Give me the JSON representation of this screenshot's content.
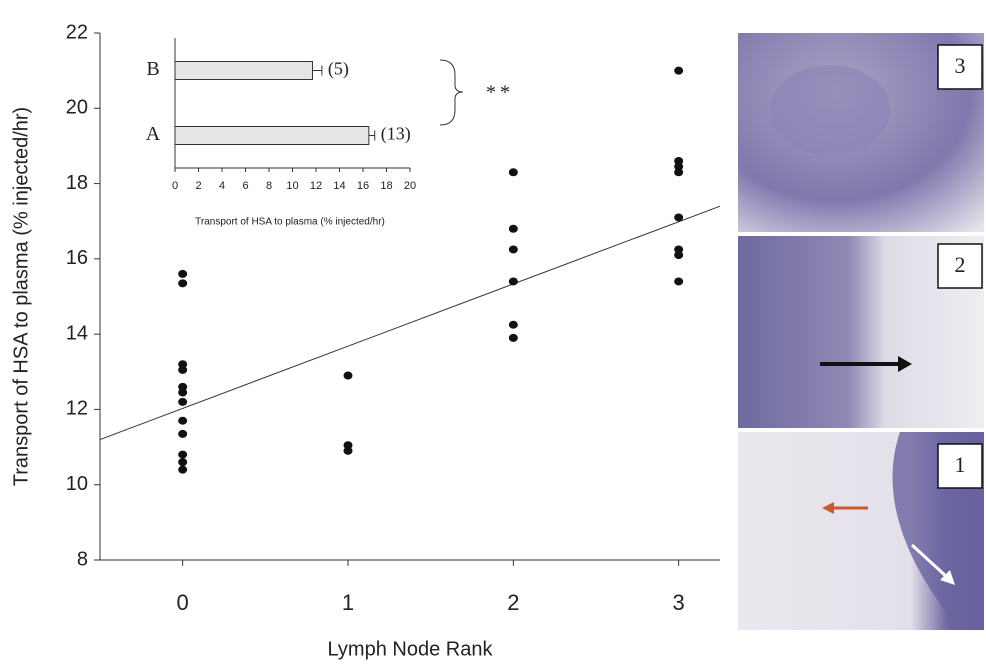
{
  "chart_data": [
    {
      "type": "scatter",
      "xlabel": "Lymph Node Rank",
      "ylabel": "Transport of HSA to plasma (% injected/hr)",
      "x": [
        0,
        0,
        0,
        0,
        0,
        0,
        0,
        0,
        0,
        0,
        0,
        0,
        1,
        1,
        1,
        2,
        2,
        2,
        2,
        2,
        2,
        3,
        3,
        3,
        3,
        3,
        3,
        3,
        3
      ],
      "values": [
        15.6,
        15.35,
        13.2,
        13.05,
        12.6,
        12.45,
        12.2,
        11.7,
        11.35,
        10.8,
        10.6,
        10.4,
        12.9,
        11.05,
        10.9,
        18.3,
        16.8,
        16.25,
        15.4,
        14.25,
        13.9,
        21.0,
        18.6,
        18.45,
        18.3,
        17.1,
        16.25,
        16.1,
        15.4
      ],
      "color": "#111111",
      "trendline": {
        "x": [
          -0.5,
          3.25
        ],
        "values": [
          11.2,
          17.4
        ],
        "color": "#333333"
      },
      "xlim": [
        -0.5,
        3.25
      ],
      "xticks": [
        0,
        1,
        2,
        3
      ],
      "ylim": [
        8,
        22
      ],
      "yticks": [
        8,
        10,
        12,
        14,
        16,
        18,
        20,
        22
      ]
    },
    {
      "type": "bar",
      "orientation": "horizontal",
      "xlabel": "Transport of HSA to plasma (% injected/hr)",
      "categories": [
        "B",
        "A"
      ],
      "values": [
        11.7,
        16.5
      ],
      "errors": [
        0.8,
        0.5
      ],
      "n_labels": [
        "(5)",
        "(13)"
      ],
      "annotation": "**",
      "color": "#e6e6e6",
      "xlim": [
        0,
        20
      ],
      "xticks": [
        0,
        2,
        4,
        6,
        8,
        10,
        12,
        14,
        16,
        18,
        20
      ]
    }
  ],
  "images": {
    "labels": [
      "3",
      "2",
      "1"
    ]
  }
}
